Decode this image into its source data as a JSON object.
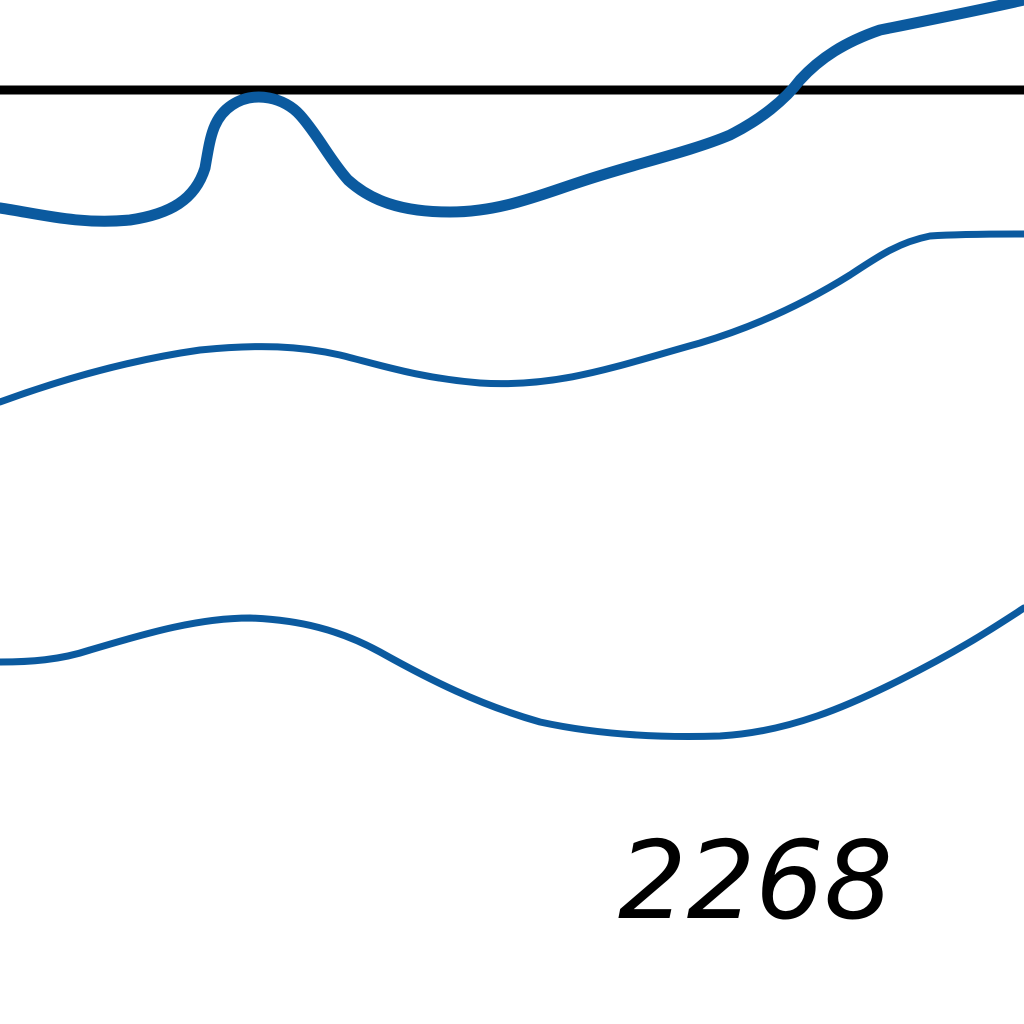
{
  "map": {
    "colors": {
      "contour": "#0b5a9f",
      "rule": "#000000",
      "background": "#ffffff"
    },
    "elevation_label": "2268",
    "contours": [
      {
        "name": "index-contour",
        "kind": "index"
      },
      {
        "name": "contour-2",
        "kind": "regular"
      },
      {
        "name": "contour-3",
        "kind": "regular"
      }
    ],
    "reference_line": {
      "name": "horizontal-rule"
    }
  }
}
